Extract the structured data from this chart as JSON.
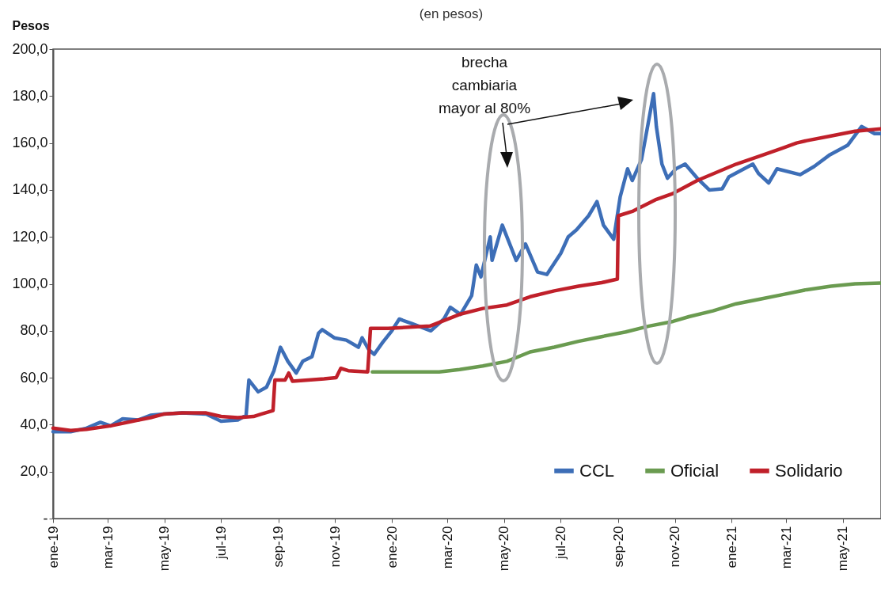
{
  "chart_data": {
    "type": "line",
    "subtitle": "(en pesos)",
    "ylabel": "Pesos",
    "annotations": [
      "brecha cambiaria mayor al 80%"
    ],
    "legend": "bottom right",
    "line_style": "solid",
    "xlim": [
      "2019-01-01",
      "2021-06-11"
    ],
    "xticks": [
      {
        "value": "2019-01-01",
        "label": "ene-19"
      },
      {
        "value": "2019-03-01",
        "label": "mar-19"
      },
      {
        "value": "2019-05-01",
        "label": "may-19"
      },
      {
        "value": "2019-07-01",
        "label": "jul-19"
      },
      {
        "value": "2019-09-01",
        "label": "sep-19"
      },
      {
        "value": "2019-11-01",
        "label": "nov-19"
      },
      {
        "value": "2020-01-01",
        "label": "ene-20"
      },
      {
        "value": "2020-03-01",
        "label": "mar-20"
      },
      {
        "value": "2020-05-01",
        "label": "may-20"
      },
      {
        "value": "2020-07-01",
        "label": "jul-20"
      },
      {
        "value": "2020-09-01",
        "label": "sep-20"
      },
      {
        "value": "2020-11-01",
        "label": "nov-20"
      },
      {
        "value": "2021-01-01",
        "label": "ene-21"
      },
      {
        "value": "2021-03-01",
        "label": "mar-21"
      },
      {
        "value": "2021-05-01",
        "label": "may-21"
      }
    ],
    "ylim": [
      0,
      200
    ],
    "yticks": [
      {
        "value": 0,
        "label": "-"
      },
      {
        "value": 20,
        "label": "20,0"
      },
      {
        "value": 40,
        "label": "40,0"
      },
      {
        "value": 60,
        "label": "60,0"
      },
      {
        "value": 80,
        "label": "80,0"
      },
      {
        "value": 100,
        "label": "100,0"
      },
      {
        "value": 120,
        "label": "120,0"
      },
      {
        "value": 140,
        "label": "140,0"
      },
      {
        "value": 160,
        "label": "160,0"
      },
      {
        "value": 180,
        "label": "180,0"
      },
      {
        "value": 200,
        "label": "200,0"
      }
    ],
    "series": [
      {
        "name": "CCL",
        "color": "#3d6eb7",
        "x": [
          "2019-01-01",
          "2019-01-20",
          "2019-02-06",
          "2019-02-21",
          "2019-03-04",
          "2019-03-17",
          "2019-04-03",
          "2019-04-16",
          "2019-04-30",
          "2019-05-20",
          "2019-06-15",
          "2019-07-01",
          "2019-07-19",
          "2019-07-28",
          "2019-07-31",
          "2019-08-10",
          "2019-08-19",
          "2019-08-27",
          "2019-09-03",
          "2019-09-11",
          "2019-09-20",
          "2019-09-27",
          "2019-10-07",
          "2019-10-14",
          "2019-10-18",
          "2019-10-31",
          "2019-11-13",
          "2019-11-26",
          "2019-11-30",
          "2019-12-07",
          "2019-12-13",
          "2019-12-22",
          "2020-01-01",
          "2020-01-09",
          "2020-01-23",
          "2020-02-12",
          "2020-02-26",
          "2020-03-04",
          "2020-03-15",
          "2020-03-27",
          "2020-04-01",
          "2020-04-06",
          "2020-04-16",
          "2020-04-18",
          "2020-04-29",
          "2020-05-14",
          "2020-05-24",
          "2020-06-06",
          "2020-06-16",
          "2020-07-01",
          "2020-07-09",
          "2020-07-18",
          "2020-07-31",
          "2020-08-09",
          "2020-08-16",
          "2020-08-27",
          "2020-09-03",
          "2020-09-11",
          "2020-09-16",
          "2020-09-26",
          "2020-10-03",
          "2020-10-09",
          "2020-10-12",
          "2020-10-18",
          "2020-10-24",
          "2020-11-02",
          "2020-11-12",
          "2020-11-25",
          "2020-12-08",
          "2020-12-22",
          "2020-12-29",
          "2021-01-24",
          "2021-01-30",
          "2021-02-10",
          "2021-02-19",
          "2021-03-16",
          "2021-03-31",
          "2021-04-17",
          "2021-05-06",
          "2021-05-21",
          "2021-06-04",
          "2021-06-11"
        ],
        "values": [
          37,
          37,
          38.5,
          41,
          39.5,
          42.5,
          42,
          44,
          44.5,
          45,
          44.5,
          41.5,
          42,
          44,
          59,
          54,
          56,
          63,
          73,
          67,
          62,
          67,
          69,
          79,
          80.5,
          77,
          76,
          73,
          77,
          72,
          70,
          75,
          80,
          85,
          83,
          80,
          85,
          90,
          87,
          95,
          108,
          103,
          120,
          110,
          125,
          110,
          117,
          105,
          104,
          113,
          120,
          123,
          129,
          135,
          125,
          119,
          137,
          149,
          144,
          153,
          168,
          181,
          167,
          151,
          145,
          149,
          151,
          145,
          140,
          140.5,
          145.5,
          151,
          147,
          143,
          149,
          146.5,
          150,
          155,
          159,
          167,
          164,
          164
        ]
      },
      {
        "name": "Oficial",
        "color": "#6a9b50",
        "x": [
          "2019-12-11",
          "2020-02-21",
          "2020-03-14",
          "2020-04-08",
          "2020-05-04",
          "2020-05-29",
          "2020-06-24",
          "2020-07-20",
          "2020-08-14",
          "2020-09-09",
          "2020-10-04",
          "2020-10-30",
          "2020-11-16",
          "2020-12-12",
          "2021-01-06",
          "2021-02-01",
          "2021-02-26",
          "2021-03-23",
          "2021-04-18",
          "2021-05-14",
          "2021-06-11"
        ],
        "values": [
          62.5,
          62.5,
          63.5,
          65,
          67,
          71,
          73,
          75.5,
          77.5,
          79.5,
          82,
          84,
          86,
          88.5,
          91.5,
          93.5,
          95.5,
          97.5,
          99,
          100,
          100.3
        ]
      },
      {
        "name": "Solidario",
        "color": "#c0202a",
        "x": [
          "2019-01-01",
          "2019-01-20",
          "2019-02-06",
          "2019-03-04",
          "2019-04-03",
          "2019-04-16",
          "2019-04-30",
          "2019-05-20",
          "2019-06-15",
          "2019-07-01",
          "2019-07-19",
          "2019-08-05",
          "2019-08-13",
          "2019-08-26",
          "2019-08-28",
          "2019-09-08",
          "2019-09-12",
          "2019-09-16",
          "2019-10-03",
          "2019-10-20",
          "2019-11-02",
          "2019-11-07",
          "2019-11-15",
          "2019-12-06",
          "2019-12-09",
          "2019-12-28",
          "2020-02-11",
          "2020-03-14",
          "2020-04-08",
          "2020-05-04",
          "2020-05-29",
          "2020-06-24",
          "2020-07-20",
          "2020-08-14",
          "2020-08-31",
          "2020-09-01",
          "2020-09-17",
          "2020-10-12",
          "2020-10-30",
          "2020-11-25",
          "2021-01-06",
          "2021-02-01",
          "2021-02-26",
          "2021-03-12",
          "2021-03-23",
          "2021-04-18",
          "2021-05-14",
          "2021-06-11"
        ],
        "values": [
          38.5,
          37.5,
          38,
          39.5,
          42,
          43,
          44.5,
          45,
          45,
          43.5,
          43,
          43.5,
          44.5,
          46,
          59,
          59,
          62,
          58.5,
          59,
          59.5,
          60,
          64,
          63,
          62.5,
          81,
          81,
          82,
          87,
          89.5,
          91,
          94.5,
          97,
          99,
          100.5,
          102,
          129,
          131,
          136,
          138.5,
          144,
          151,
          154.5,
          158,
          160,
          161,
          163,
          165,
          166
        ]
      }
    ]
  }
}
